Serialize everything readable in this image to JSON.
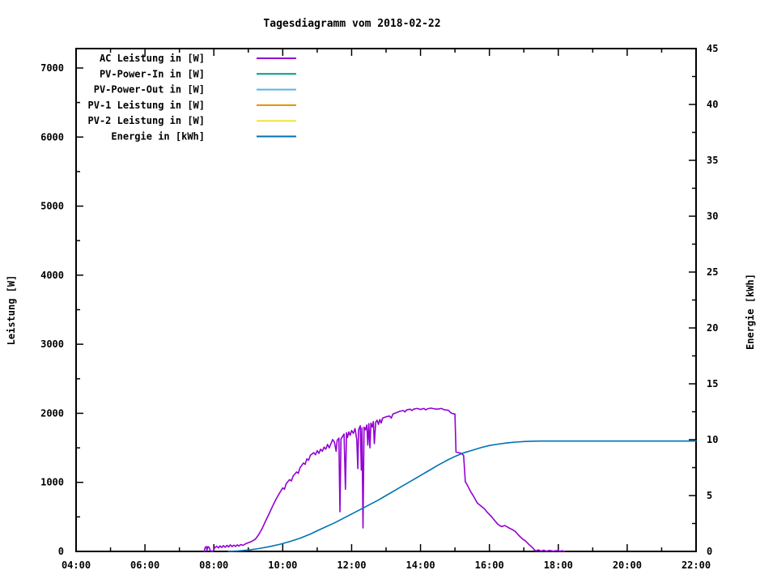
{
  "title": "Tagesdiagramm vom 2018-02-22",
  "chart_data": {
    "type": "line",
    "title": "Tagesdiagramm vom 2018-02-22",
    "grid": false,
    "legend_position": "top-left-inside",
    "x_axis": {
      "labels": [
        "04:00",
        "06:00",
        "08:00",
        "10:00",
        "12:00",
        "14:00",
        "16:00",
        "18:00",
        "20:00",
        "22:00"
      ],
      "hours": [
        4,
        6,
        8,
        10,
        12,
        14,
        16,
        18,
        20,
        22
      ],
      "minor_step": 1,
      "range": [
        4,
        22
      ]
    },
    "y_left": {
      "label": "Leistung [W]",
      "ticks": [
        0,
        1000,
        2000,
        3000,
        4000,
        5000,
        6000,
        7000
      ],
      "minor_step": 500,
      "range": [
        0,
        7281
      ]
    },
    "y_right": {
      "label": "Energie [kWh]",
      "ticks": [
        0,
        5,
        10,
        15,
        20,
        25,
        30,
        35,
        40,
        45
      ],
      "minor_step": 2.5,
      "range": [
        0,
        45
      ]
    },
    "series": [
      {
        "name": "AC Leistung in [W]",
        "color": "#9400d3",
        "axis": "left",
        "points": [
          [
            7.72,
            0
          ],
          [
            7.75,
            60
          ],
          [
            7.78,
            70
          ],
          [
            7.8,
            20
          ],
          [
            7.83,
            70
          ],
          [
            7.86,
            60
          ],
          [
            7.9,
            8
          ],
          [
            7.97,
            0
          ],
          [
            8.03,
            55
          ],
          [
            8.08,
            75
          ],
          [
            8.13,
            50
          ],
          [
            8.18,
            80
          ],
          [
            8.23,
            58
          ],
          [
            8.28,
            85
          ],
          [
            8.33,
            60
          ],
          [
            8.38,
            88
          ],
          [
            8.43,
            65
          ],
          [
            8.48,
            95
          ],
          [
            8.53,
            70
          ],
          [
            8.58,
            90
          ],
          [
            8.63,
            72
          ],
          [
            8.68,
            95
          ],
          [
            8.73,
            78
          ],
          [
            8.78,
            100
          ],
          [
            8.85,
            88
          ],
          [
            8.92,
            110
          ],
          [
            9.0,
            125
          ],
          [
            9.1,
            145
          ],
          [
            9.2,
            175
          ],
          [
            9.3,
            240
          ],
          [
            9.4,
            330
          ],
          [
            9.5,
            440
          ],
          [
            9.6,
            540
          ],
          [
            9.7,
            650
          ],
          [
            9.8,
            750
          ],
          [
            9.9,
            840
          ],
          [
            10.0,
            920
          ],
          [
            10.05,
            900
          ],
          [
            10.1,
            980
          ],
          [
            10.2,
            1040
          ],
          [
            10.25,
            1020
          ],
          [
            10.3,
            1090
          ],
          [
            10.4,
            1150
          ],
          [
            10.45,
            1130
          ],
          [
            10.5,
            1210
          ],
          [
            10.6,
            1280
          ],
          [
            10.65,
            1260
          ],
          [
            10.7,
            1340
          ],
          [
            10.75,
            1320
          ],
          [
            10.8,
            1390
          ],
          [
            10.9,
            1430
          ],
          [
            10.95,
            1400
          ],
          [
            11.0,
            1460
          ],
          [
            11.05,
            1420
          ],
          [
            11.1,
            1480
          ],
          [
            11.15,
            1450
          ],
          [
            11.2,
            1510
          ],
          [
            11.25,
            1480
          ],
          [
            11.3,
            1550
          ],
          [
            11.35,
            1500
          ],
          [
            11.4,
            1560
          ],
          [
            11.45,
            1620
          ],
          [
            11.5,
            1580
          ],
          [
            11.55,
            1450
          ],
          [
            11.58,
            1610
          ],
          [
            11.63,
            1640
          ],
          [
            11.66,
            575
          ],
          [
            11.69,
            1630
          ],
          [
            11.73,
            1660
          ],
          [
            11.78,
            1700
          ],
          [
            11.82,
            900
          ],
          [
            11.85,
            1720
          ],
          [
            11.88,
            1650
          ],
          [
            11.92,
            1730
          ],
          [
            11.96,
            1680
          ],
          [
            12.0,
            1750
          ],
          [
            12.05,
            1710
          ],
          [
            12.1,
            1780
          ],
          [
            12.15,
            1620
          ],
          [
            12.18,
            1200
          ],
          [
            12.2,
            1760
          ],
          [
            12.25,
            1820
          ],
          [
            12.28,
            1180
          ],
          [
            12.3,
            1790
          ],
          [
            12.33,
            340
          ],
          [
            12.36,
            1800
          ],
          [
            12.4,
            1760
          ],
          [
            12.44,
            1830
          ],
          [
            12.47,
            1540
          ],
          [
            12.5,
            1850
          ],
          [
            12.53,
            1500
          ],
          [
            12.56,
            1860
          ],
          [
            12.6,
            1800
          ],
          [
            12.63,
            1880
          ],
          [
            12.66,
            1560
          ],
          [
            12.7,
            1870
          ],
          [
            12.74,
            1900
          ],
          [
            12.78,
            1840
          ],
          [
            12.82,
            1910
          ],
          [
            12.86,
            1860
          ],
          [
            12.9,
            1930
          ],
          [
            13.0,
            1950
          ],
          [
            13.1,
            1960
          ],
          [
            13.15,
            1930
          ],
          [
            13.2,
            1990
          ],
          [
            13.3,
            2010
          ],
          [
            13.4,
            2030
          ],
          [
            13.5,
            2040
          ],
          [
            13.55,
            2020
          ],
          [
            13.6,
            2050
          ],
          [
            13.7,
            2060
          ],
          [
            13.75,
            2040
          ],
          [
            13.8,
            2060
          ],
          [
            13.9,
            2070
          ],
          [
            14.0,
            2055
          ],
          [
            14.1,
            2070
          ],
          [
            14.15,
            2050
          ],
          [
            14.2,
            2065
          ],
          [
            14.3,
            2075
          ],
          [
            14.4,
            2065
          ],
          [
            14.5,
            2060
          ],
          [
            14.6,
            2070
          ],
          [
            14.7,
            2050
          ],
          [
            14.8,
            2045
          ],
          [
            14.9,
            2000
          ],
          [
            14.95,
            1995
          ],
          [
            15.0,
            1990
          ],
          [
            15.03,
            1440
          ],
          [
            15.1,
            1430
          ],
          [
            15.18,
            1420
          ],
          [
            15.25,
            1390
          ],
          [
            15.3,
            1010
          ],
          [
            15.35,
            970
          ],
          [
            15.45,
            870
          ],
          [
            15.55,
            790
          ],
          [
            15.65,
            700
          ],
          [
            15.75,
            660
          ],
          [
            15.85,
            620
          ],
          [
            15.95,
            560
          ],
          [
            16.05,
            510
          ],
          [
            16.15,
            450
          ],
          [
            16.25,
            390
          ],
          [
            16.35,
            360
          ],
          [
            16.45,
            375
          ],
          [
            16.55,
            345
          ],
          [
            16.65,
            320
          ],
          [
            16.75,
            290
          ],
          [
            16.85,
            235
          ],
          [
            16.95,
            185
          ],
          [
            17.05,
            150
          ],
          [
            17.15,
            100
          ],
          [
            17.25,
            55
          ],
          [
            17.3,
            25
          ],
          [
            17.35,
            8
          ],
          [
            17.42,
            22
          ],
          [
            17.5,
            5
          ],
          [
            17.58,
            18
          ],
          [
            17.65,
            4
          ],
          [
            17.75,
            14
          ],
          [
            17.85,
            3
          ],
          [
            17.95,
            12
          ],
          [
            18.05,
            4
          ],
          [
            18.12,
            10
          ],
          [
            18.18,
            0
          ]
        ]
      },
      {
        "name": "PV-Power-In in [W]",
        "color": "#009e80",
        "axis": "left",
        "points": []
      },
      {
        "name": "PV-Power-Out in [W]",
        "color": "#56b4e9",
        "axis": "left",
        "points": []
      },
      {
        "name": "PV-1 Leistung in [W]",
        "color": "#de9500",
        "axis": "left",
        "points": []
      },
      {
        "name": "PV-2 Leistung in [W]",
        "color": "#f0e442",
        "axis": "left",
        "points": []
      },
      {
        "name": "Energie in [kWh]",
        "color": "#0072b2",
        "axis": "right",
        "points": [
          [
            8.42,
            0
          ],
          [
            8.7,
            0.04
          ],
          [
            9.0,
            0.12
          ],
          [
            9.3,
            0.25
          ],
          [
            9.6,
            0.42
          ],
          [
            9.9,
            0.62
          ],
          [
            10.2,
            0.88
          ],
          [
            10.5,
            1.18
          ],
          [
            10.8,
            1.55
          ],
          [
            11.0,
            1.85
          ],
          [
            11.25,
            2.2
          ],
          [
            11.5,
            2.55
          ],
          [
            11.75,
            2.95
          ],
          [
            12.0,
            3.35
          ],
          [
            12.25,
            3.75
          ],
          [
            12.5,
            4.15
          ],
          [
            12.75,
            4.55
          ],
          [
            13.0,
            5.0
          ],
          [
            13.25,
            5.45
          ],
          [
            13.5,
            5.9
          ],
          [
            13.75,
            6.35
          ],
          [
            14.0,
            6.8
          ],
          [
            14.25,
            7.25
          ],
          [
            14.5,
            7.7
          ],
          [
            14.75,
            8.12
          ],
          [
            15.0,
            8.5
          ],
          [
            15.25,
            8.82
          ],
          [
            15.5,
            9.05
          ],
          [
            15.75,
            9.28
          ],
          [
            16.0,
            9.48
          ],
          [
            16.25,
            9.6
          ],
          [
            16.5,
            9.7
          ],
          [
            16.75,
            9.78
          ],
          [
            17.0,
            9.83
          ],
          [
            17.2,
            9.86
          ],
          [
            17.5,
            9.88
          ],
          [
            18.0,
            9.88
          ],
          [
            22.0,
            9.88
          ]
        ]
      }
    ]
  }
}
